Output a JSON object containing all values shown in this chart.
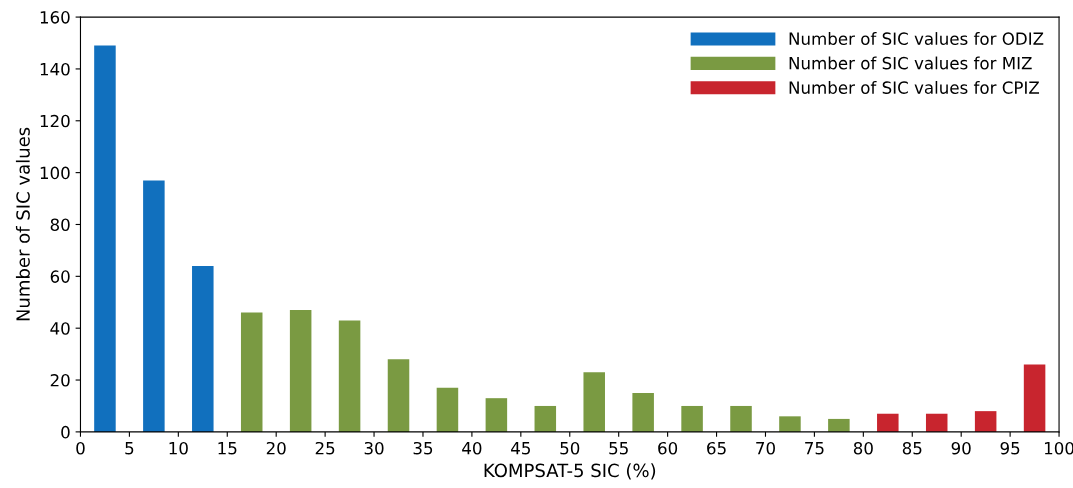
{
  "chart_data": {
    "type": "bar",
    "xlabel": "KOMPSAT-5 SIC (%)",
    "ylabel": "Number of SIC values",
    "xlim": [
      0,
      100
    ],
    "xticks": [
      0,
      5,
      10,
      15,
      20,
      25,
      30,
      35,
      40,
      45,
      50,
      55,
      60,
      65,
      70,
      75,
      80,
      85,
      90,
      95,
      100
    ],
    "ylim": [
      0,
      160
    ],
    "yticks": [
      0,
      20,
      40,
      60,
      80,
      100,
      120,
      140,
      160
    ],
    "grid": false,
    "legend": "top right",
    "series": [
      {
        "name": "Number of SIC values for ODIZ",
        "color": "#1170be",
        "x": [
          2.5,
          7.5,
          12.5
        ],
        "values": [
          149,
          97,
          64
        ]
      },
      {
        "name": "Number of SIC values for MIZ",
        "color": "#7a9a42",
        "x": [
          17.5,
          22.5,
          27.5,
          32.5,
          37.5,
          42.5,
          47.5,
          52.5,
          57.5,
          62.5,
          67.5,
          72.5,
          77.5
        ],
        "values": [
          46,
          47,
          43,
          28,
          17,
          13,
          10,
          23,
          15,
          10,
          10,
          6,
          5
        ]
      },
      {
        "name": "Number of SIC values for CPIZ",
        "color": "#c8252e",
        "x": [
          82.5,
          87.5,
          92.5,
          97.5
        ],
        "values": [
          7,
          7,
          8,
          26
        ]
      }
    ]
  }
}
